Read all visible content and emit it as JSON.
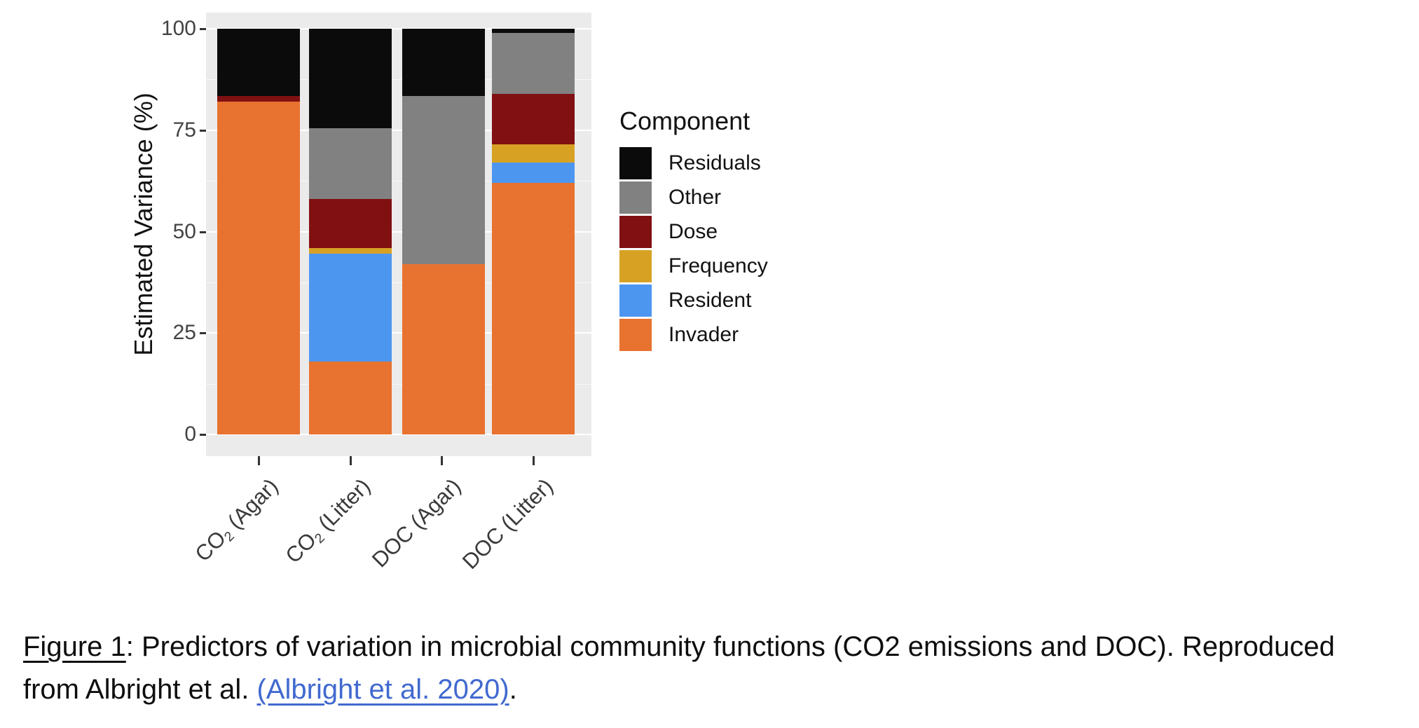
{
  "chart_data": {
    "type": "bar",
    "stacked": true,
    "title": "",
    "categories": [
      "CO2 (Agar)",
      "CO2 (Litter)",
      "DOC (Agar)",
      "DOC (Litter)"
    ],
    "series": [
      {
        "name": "Invader",
        "color": "#E8722F",
        "values": [
          82,
          18,
          42,
          62
        ]
      },
      {
        "name": "Resident",
        "color": "#4D96F0",
        "values": [
          0,
          26.5,
          0,
          5
        ]
      },
      {
        "name": "Frequency",
        "color": "#D7A224",
        "values": [
          0,
          1.5,
          0,
          4.5
        ]
      },
      {
        "name": "Dose",
        "color": "#801011",
        "values": [
          1.5,
          12,
          0,
          12.5
        ]
      },
      {
        "name": "Other",
        "color": "#818181",
        "values": [
          0,
          17.5,
          41.5,
          15
        ]
      },
      {
        "name": "Residuals",
        "color": "#0B0B0B",
        "values": [
          16.5,
          24.5,
          16.5,
          1
        ]
      }
    ],
    "xlabel": "",
    "ylabel": "Estimated Variance (%)",
    "ylim": [
      0,
      100
    ],
    "yticks": [
      0,
      25,
      50,
      75,
      100
    ],
    "yticks_minor": [
      12.5,
      37.5,
      62.5,
      87.5
    ],
    "grid": "on",
    "legend_title": "Component",
    "legend_position": "right",
    "legend_order_top_to_bottom": [
      "Residuals",
      "Other",
      "Dose",
      "Frequency",
      "Resident",
      "Invader"
    ],
    "panel_background": "#EBEBEB",
    "gridline_color": "#FFFFFF"
  },
  "figure": {
    "y_axis_title": "Estimated Variance (%)",
    "x_labels_rich": [
      {
        "pre": "CO",
        "sub": "2",
        "post": " (Agar)"
      },
      {
        "pre": "CO",
        "sub": "2",
        "post": " (Litter)"
      },
      {
        "pre": "DOC",
        "sub": "",
        "post": " (Agar)"
      },
      {
        "pre": "DOC",
        "sub": "",
        "post": " (Litter)"
      }
    ],
    "legend_title": "Component"
  },
  "caption": {
    "label": "Figure 1",
    "after_label": ": Predictors of variation in microbial community functions (CO2 emissions and DOC). Reproduced",
    "line2_prefix": "from Albright et al. ",
    "link_text": "(Albright et al. 2020)",
    "suffix": ".",
    "link_color": "#4169CF"
  }
}
